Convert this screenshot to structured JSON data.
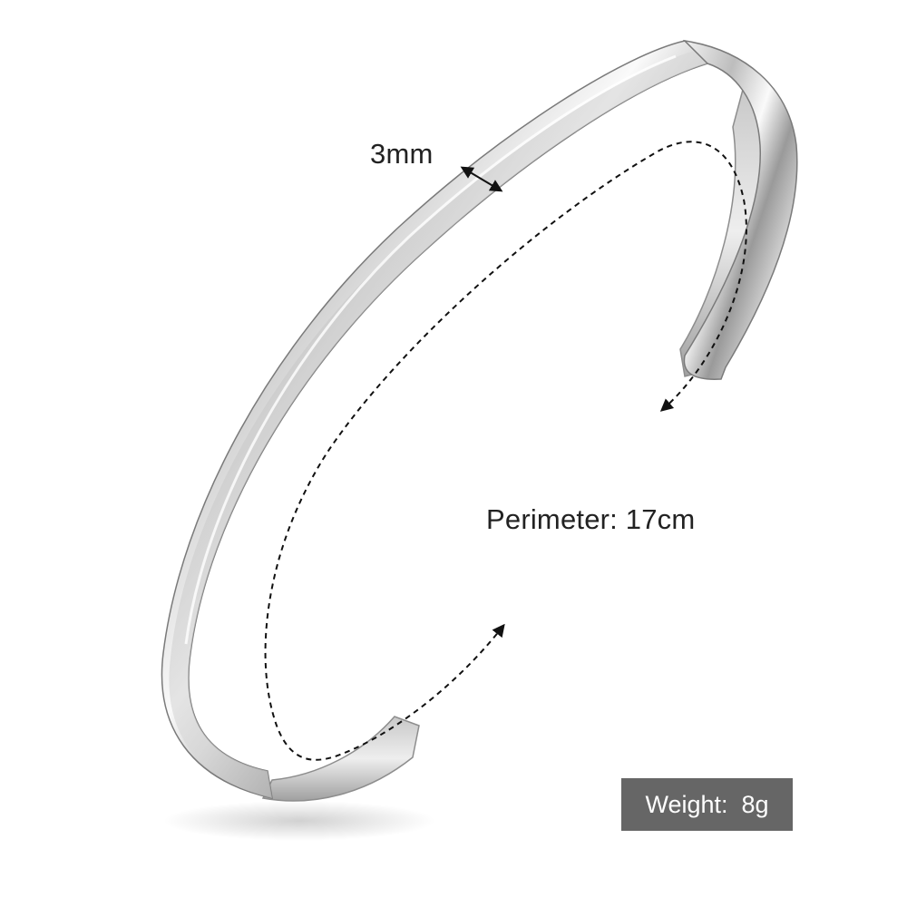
{
  "product": {
    "width_label": "3mm",
    "perimeter_label": "Perimeter: 17cm",
    "weight_label": "Weight:  8g"
  },
  "colors": {
    "badge_background": "#666666",
    "badge_text": "#ffffff",
    "label_text": "#222222",
    "metal_light": "#eeeeee",
    "metal_dark": "#8a8a8a",
    "arrow": "#111111"
  }
}
